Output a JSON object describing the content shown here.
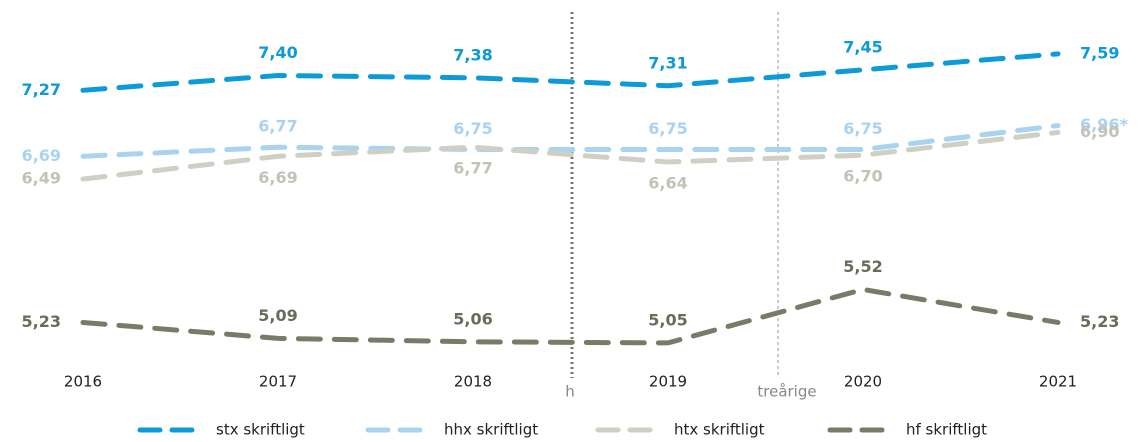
{
  "chart_data": {
    "type": "line",
    "categories": [
      "2016",
      "2017",
      "2018",
      "2019",
      "2020",
      "2021"
    ],
    "series": [
      {
        "name": "stx skriftligt",
        "color": "#0d9ad8",
        "values": [
          7.27,
          7.4,
          7.38,
          7.31,
          7.45,
          7.59
        ],
        "value_labels": [
          "7,27",
          "7,40",
          "7,38",
          "7,31",
          "7,45",
          "7,59"
        ]
      },
      {
        "name": "hhx skriftligt",
        "color": "#a9d3f1",
        "values": [
          6.69,
          6.77,
          6.75,
          6.75,
          6.75,
          6.96
        ],
        "value_labels": [
          "6,69",
          "6,77",
          "6,75",
          "6,75",
          "6,75",
          "6,96*"
        ]
      },
      {
        "name": "htx skriftligt",
        "color": "#d0cfc4",
        "values": [
          6.49,
          6.69,
          6.77,
          6.64,
          6.7,
          6.9
        ],
        "value_labels": [
          "6,49",
          "6,69",
          "6,77",
          "6,64",
          "6,70",
          "6,90"
        ]
      },
      {
        "name": "hf skriftligt",
        "color": "#7a7a68",
        "values": [
          5.23,
          5.09,
          5.06,
          5.05,
          5.52,
          5.23
        ],
        "value_labels": [
          "5,23",
          "5,09",
          "5,06",
          "5,05",
          "5,52",
          "5,23"
        ]
      }
    ],
    "ylim": [
      4.9,
      7.8
    ],
    "annotations": [
      "h",
      "treårige"
    ],
    "legend": "bottom"
  }
}
